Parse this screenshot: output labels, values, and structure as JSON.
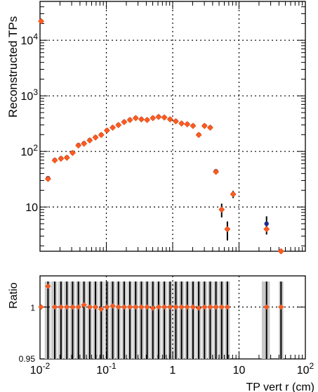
{
  "chart_data": [
    {
      "type": "scatter",
      "ylabel": "Reconstructed TPs",
      "xlabel": "",
      "xscale": "log",
      "yscale": "log",
      "xlim": [
        0.01,
        100
      ],
      "ylim": [
        1.6,
        50000
      ],
      "grid": true,
      "y_tick_labels": [
        "10",
        "10^2",
        "10^3",
        "10^4"
      ],
      "x": [
        0.0104,
        0.0132,
        0.0167,
        0.0207,
        0.0254,
        0.031,
        0.0379,
        0.046,
        0.0562,
        0.0686,
        0.0837,
        0.1021,
        0.1247,
        0.1521,
        0.1857,
        0.2266,
        0.2767,
        0.3376,
        0.4118,
        0.5025,
        0.6132,
        0.7487,
        0.9136,
        1.1145,
        1.3597,
        1.6592,
        2.0247,
        2.4711,
        3.016,
        3.6776,
        4.4852,
        5.4716,
        6.6742,
        8.147,
        26.0,
        43.0
      ],
      "series": [
        {
          "values": [
            22000,
            33,
            70,
            75,
            78,
            95,
            130,
            140,
            160,
            180,
            200,
            240,
            270,
            300,
            340,
            370,
            400,
            380,
            370,
            400,
            420,
            410,
            380,
            350,
            320,
            310,
            290,
            200,
            290,
            270,
            44,
            9,
            4,
            17,
            5,
            1.6
          ],
          "y_err": [
            0,
            3,
            4,
            4,
            4,
            5,
            5,
            6,
            6,
            7,
            7,
            8,
            8,
            9,
            9,
            10,
            10,
            10,
            10,
            10,
            10,
            10,
            10,
            9,
            9,
            9,
            9,
            7,
            9,
            8,
            3,
            2.5,
            1.5,
            2.5,
            1.8,
            0
          ]
        },
        {
          "values": [
            22000,
            32,
            69,
            74,
            77,
            94,
            128,
            138,
            158,
            178,
            198,
            238,
            268,
            298,
            338,
            368,
            398,
            378,
            368,
            398,
            418,
            408,
            378,
            348,
            318,
            308,
            288,
            198,
            288,
            268,
            43,
            9,
            4,
            17,
            4,
            1.6
          ]
        }
      ]
    },
    {
      "type": "scatter",
      "ylabel": "Ratio",
      "xlabel": "TP vert r (cm)",
      "xscale": "log",
      "xlim": [
        0.01,
        100
      ],
      "ylim": [
        0.95,
        1.03
      ],
      "grid": true,
      "x_tick_labels": [
        "10^-2",
        "10^-1",
        "1",
        "10",
        "10^2"
      ],
      "y_tick_labels": [
        "0.95",
        "1"
      ],
      "x": [
        0.0104,
        0.0132,
        0.0167,
        0.0207,
        0.0254,
        0.031,
        0.0379,
        0.046,
        0.0562,
        0.0686,
        0.0837,
        0.1021,
        0.1247,
        0.1521,
        0.1857,
        0.2266,
        0.2767,
        0.3376,
        0.4118,
        0.5025,
        0.6132,
        0.7487,
        0.9136,
        1.1145,
        1.3597,
        1.6592,
        2.0247,
        2.4711,
        3.016,
        3.6776,
        4.4852,
        5.4716,
        6.6742,
        26.0,
        43.0
      ],
      "values": [
        1.0,
        1.02,
        1.0,
        1.0,
        1.0,
        1.0,
        1.0,
        1.002,
        1.0,
        1.0,
        0.998,
        1.0,
        1.001,
        1.0,
        1.0,
        1.0,
        1.0,
        1.0,
        1.0,
        0.999,
        1.0,
        1.0,
        1.0,
        1.0,
        1.0,
        1.0,
        1.0,
        0.999,
        1.0,
        1.0,
        1.0,
        1.0,
        1.0,
        1.0,
        1.0
      ],
      "bands": [
        [
          0.0118,
          0.0148
        ],
        [
          0.0148,
          0.0187
        ],
        [
          0.0187,
          0.0231
        ],
        [
          0.0231,
          0.0285
        ],
        [
          0.0285,
          0.0348
        ],
        [
          0.0348,
          0.0425
        ],
        [
          0.0425,
          0.0516
        ],
        [
          0.0516,
          0.063
        ],
        [
          0.063,
          0.0769
        ],
        [
          0.0769,
          0.0938
        ],
        [
          0.0938,
          0.1144
        ],
        [
          0.1144,
          0.1397
        ],
        [
          0.1397,
          0.1704
        ],
        [
          0.1704,
          0.2081
        ],
        [
          0.2081,
          0.2539
        ],
        [
          0.2539,
          0.31
        ],
        [
          0.31,
          0.3783
        ],
        [
          0.3783,
          0.4614
        ],
        [
          0.4614,
          0.5631
        ],
        [
          0.5631,
          0.6872
        ],
        [
          0.6872,
          0.8387
        ],
        [
          0.8387,
          1.0237
        ],
        [
          1.0237,
          1.2489
        ],
        [
          1.2489,
          1.5237
        ],
        [
          1.5237,
          1.8594
        ],
        [
          1.8594,
          2.269
        ],
        [
          2.269,
          2.769
        ],
        [
          2.769,
          3.3797
        ],
        [
          3.3797,
          4.1206
        ],
        [
          4.1206,
          5.0246
        ],
        [
          5.0246,
          6.13
        ],
        [
          6.13,
          7.48
        ],
        [
          22.0,
          30.0
        ],
        [
          40.0,
          48.0
        ]
      ]
    }
  ]
}
